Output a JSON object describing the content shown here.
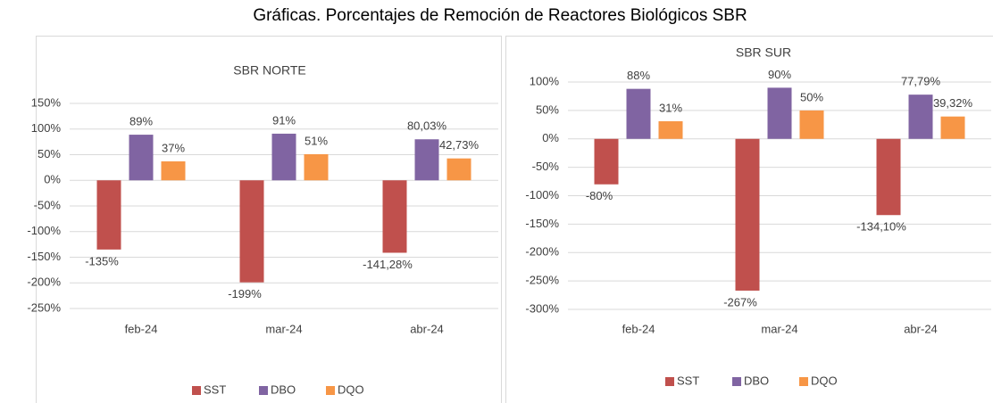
{
  "title": "Gráficas. Porcentajes de Remoción de Reactores Biológicos SBR",
  "chart_data": [
    {
      "type": "bar",
      "title": "SBR NORTE",
      "categories": [
        "feb-24",
        "mar-24",
        "abr-24"
      ],
      "series": [
        {
          "name": "SST",
          "color": "#c0504d",
          "values": [
            -135,
            -199,
            -141.28
          ],
          "value_labels": [
            "-135%",
            "-199%",
            "-141,28%"
          ]
        },
        {
          "name": "DBO",
          "color": "#8064a2",
          "values": [
            89,
            91,
            80.03
          ],
          "value_labels": [
            "89%",
            "91%",
            "80,03%"
          ]
        },
        {
          "name": "DQO",
          "color": "#f79646",
          "values": [
            37,
            51,
            42.73
          ],
          "value_labels": [
            "37%",
            "51%",
            "42,73%"
          ]
        }
      ],
      "ylim": [
        -250,
        150
      ],
      "yticks": [
        {
          "value": 150,
          "label": "150%"
        },
        {
          "value": 100,
          "label": "100%"
        },
        {
          "value": 50,
          "label": "50%"
        },
        {
          "value": 0,
          "label": "0%"
        },
        {
          "value": -50,
          "label": "-50%"
        },
        {
          "value": -100,
          "label": "-100%"
        },
        {
          "value": -150,
          "label": "-150%"
        },
        {
          "value": -200,
          "label": "-200%"
        },
        {
          "value": -250,
          "label": "-250%"
        }
      ],
      "grid": true,
      "legend": "bottom"
    },
    {
      "type": "bar",
      "title": "SBR SUR",
      "categories": [
        "feb-24",
        "mar-24",
        "abr-24"
      ],
      "series": [
        {
          "name": "SST",
          "color": "#c0504d",
          "values": [
            -80,
            -267,
            -134.1
          ],
          "value_labels": [
            "-80%",
            "-267%",
            "-134,10%"
          ]
        },
        {
          "name": "DBO",
          "color": "#8064a2",
          "values": [
            88,
            90,
            77.79
          ],
          "value_labels": [
            "88%",
            "90%",
            "77,79%"
          ]
        },
        {
          "name": "DQO",
          "color": "#f79646",
          "values": [
            31,
            50,
            39.32
          ],
          "value_labels": [
            "31%",
            "50%",
            "39,32%"
          ]
        }
      ],
      "ylim": [
        -300,
        100
      ],
      "yticks": [
        {
          "value": 100,
          "label": "100%"
        },
        {
          "value": 50,
          "label": "50%"
        },
        {
          "value": 0,
          "label": "0%"
        },
        {
          "value": -50,
          "label": "-50%"
        },
        {
          "value": -100,
          "label": "-100%"
        },
        {
          "value": -150,
          "label": "-150%"
        },
        {
          "value": -200,
          "label": "-200%"
        },
        {
          "value": -250,
          "label": "-250%"
        },
        {
          "value": -300,
          "label": "-300%"
        }
      ],
      "grid": true,
      "legend": "bottom"
    }
  ]
}
